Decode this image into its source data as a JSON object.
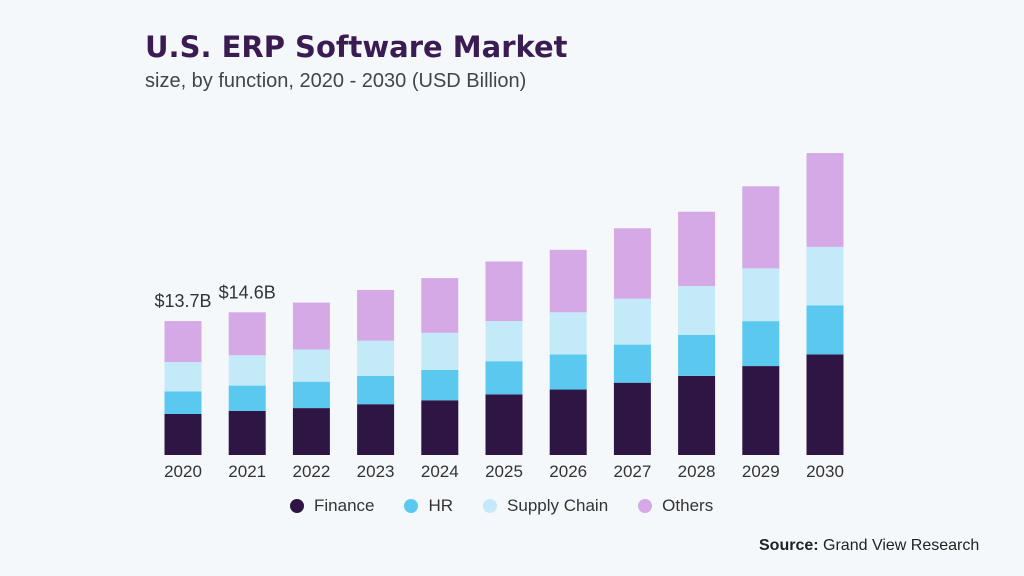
{
  "chart_data": {
    "type": "bar",
    "stacked": true,
    "title": "U.S. ERP Software Market",
    "subtitle": "size, by function, 2020 - 2030 (USD Billion)",
    "categories": [
      "2020",
      "2021",
      "2022",
      "2023",
      "2024",
      "2025",
      "2026",
      "2027",
      "2028",
      "2029",
      "2030"
    ],
    "series": [
      {
        "name": "Finance",
        "color": "#2e1544",
        "values": [
          4.2,
          4.5,
          4.8,
          5.2,
          5.6,
          6.2,
          6.7,
          7.4,
          8.1,
          9.1,
          10.3
        ]
      },
      {
        "name": "HR",
        "color": "#5bc8ef",
        "values": [
          2.3,
          2.6,
          2.7,
          2.9,
          3.1,
          3.4,
          3.6,
          3.9,
          4.2,
          4.6,
          5.0
        ]
      },
      {
        "name": "Supply Chain",
        "color": "#c4e9f8",
        "values": [
          3.0,
          3.1,
          3.3,
          3.6,
          3.8,
          4.1,
          4.3,
          4.7,
          5.0,
          5.4,
          6.0
        ]
      },
      {
        "name": "Others",
        "color": "#d4a9e6",
        "values": [
          4.2,
          4.4,
          4.8,
          5.2,
          5.6,
          6.1,
          6.4,
          7.2,
          7.6,
          8.4,
          9.6
        ]
      }
    ],
    "data_labels": [
      {
        "category": "2020",
        "text": "$13.7B"
      },
      {
        "category": "2021",
        "text": "$14.6B"
      }
    ],
    "ylim": [
      0,
      35
    ],
    "grid": false,
    "legend": "bottom"
  },
  "source": {
    "label": "Source:",
    "text": "Grand View Research"
  }
}
